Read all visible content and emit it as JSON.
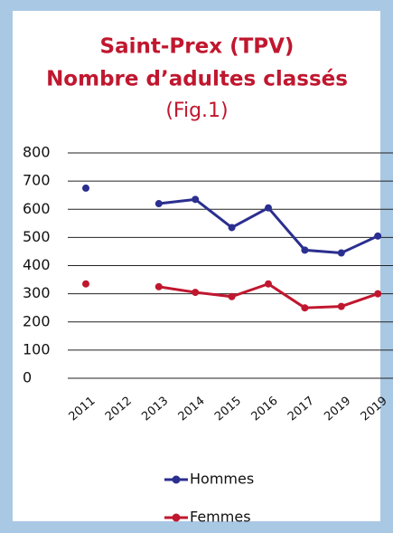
{
  "chart_data": {
    "type": "line",
    "title": "Saint-Prex (TPV)",
    "subtitle": "Nombre d’adultes classés",
    "annotation": "(Fig.1)",
    "categories": [
      "2011",
      "2012",
      "2013",
      "2014",
      "2015",
      "2016",
      "2017",
      "2019",
      "2019"
    ],
    "series": [
      {
        "name": "Hommes",
        "color": "#2b2f8f",
        "values": [
          675,
          null,
          620,
          635,
          535,
          605,
          455,
          445,
          505
        ]
      },
      {
        "name": "Femmes",
        "color": "#c0172f",
        "values": [
          335,
          null,
          325,
          305,
          290,
          335,
          250,
          255,
          300
        ]
      }
    ],
    "ylim": [
      0,
      800
    ],
    "yticks": [
      0,
      100,
      200,
      300,
      400,
      500,
      600,
      700,
      800
    ],
    "grid": true
  }
}
